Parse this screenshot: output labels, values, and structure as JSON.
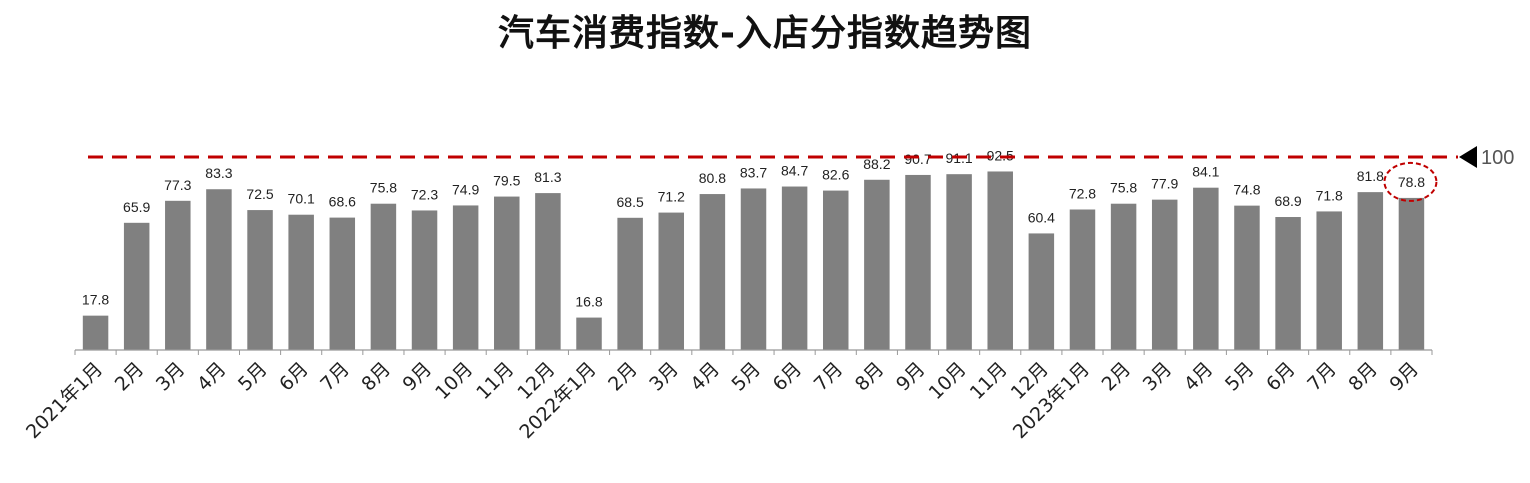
{
  "title": "汽车消费指数-入店分指数趋势图",
  "colors": {
    "bar": "#808080",
    "reference_line": "#c00000",
    "axis": "#999999",
    "highlight": "#c00000"
  },
  "chart_data": {
    "type": "bar",
    "title": "汽车消费指数-入店分指数趋势图",
    "categories": [
      "2021年1月",
      "2月",
      "3月",
      "4月",
      "5月",
      "6月",
      "7月",
      "8月",
      "9月",
      "10月",
      "11月",
      "12月",
      "2022年1月",
      "2月",
      "3月",
      "4月",
      "5月",
      "6月",
      "7月",
      "8月",
      "9月",
      "10月",
      "11月",
      "12月",
      "2023年1月",
      "2月",
      "3月",
      "4月",
      "5月",
      "6月",
      "7月",
      "8月",
      "9月"
    ],
    "values": [
      17.8,
      65.9,
      77.3,
      83.3,
      72.5,
      70.1,
      68.6,
      75.8,
      72.3,
      74.9,
      79.5,
      81.3,
      16.8,
      68.5,
      71.2,
      80.8,
      83.7,
      84.7,
      82.6,
      88.2,
      90.7,
      91.1,
      92.5,
      60.4,
      72.8,
      75.8,
      77.9,
      84.1,
      74.8,
      68.9,
      71.8,
      81.8,
      78.8
    ],
    "value_labels": [
      "17.8",
      "65.9",
      "77.3",
      "83.3",
      "72.5",
      "70.1",
      "68.6",
      "75.8",
      "72.3",
      "74.9",
      "79.5",
      "81.3",
      "16.8",
      "68.5",
      "71.2",
      "80.8",
      "83.7",
      "84.7",
      "82.6",
      "88.2",
      "90.7",
      "91.1",
      "92.5",
      "60.4",
      "72.8",
      "75.8",
      "77.9",
      "84.1",
      "74.8",
      "68.9",
      "71.8",
      "81.8",
      "78.8"
    ],
    "reference_line": {
      "value": 100,
      "label": "100",
      "style": "dashed"
    },
    "highlighted_index": 32,
    "ylim": [
      0,
      100
    ],
    "xlabel": "",
    "ylabel": "",
    "grid": false,
    "legend": "none"
  }
}
